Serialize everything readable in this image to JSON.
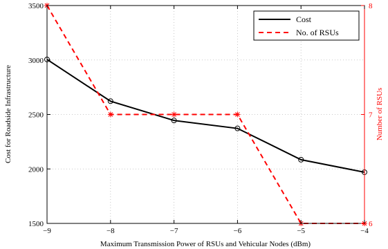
{
  "chart_data": {
    "type": "line",
    "xlabel": "Maximum Transmission Power of RSUs and Vehicular Nodes (dBm)",
    "ylabel_left": "Cost for Roadside Infrastructure",
    "ylabel_right": "Number of RSUs",
    "x": [
      -9,
      -8,
      -7,
      -6,
      -5,
      -4
    ],
    "xlim": [
      -9,
      -4
    ],
    "ylim_left": [
      1500,
      3500
    ],
    "ylim_right": [
      6,
      8
    ],
    "x_tick_labels": [
      "−9",
      "−8",
      "−7",
      "−6",
      "−5",
      "−4"
    ],
    "y_left_ticks": [
      "1500",
      "2000",
      "2500",
      "3000",
      "3500"
    ],
    "y_right_ticks": [
      "6",
      "7",
      "8"
    ],
    "grid": true,
    "legend_position": "top-right",
    "series": [
      {
        "name": "Cost",
        "axis": "left",
        "color": "#000000",
        "style": "solid",
        "marker": "circle",
        "values": [
          3005,
          2622,
          2445,
          2372,
          2085,
          1970
        ]
      },
      {
        "name": "No. of RSUs",
        "axis": "right",
        "color": "#ff0000",
        "style": "dashed",
        "marker": "star",
        "values": [
          8,
          7,
          7,
          7,
          6,
          6
        ]
      }
    ],
    "colors": {
      "left_axis": "#000000",
      "right_axis": "#ff0000"
    }
  }
}
